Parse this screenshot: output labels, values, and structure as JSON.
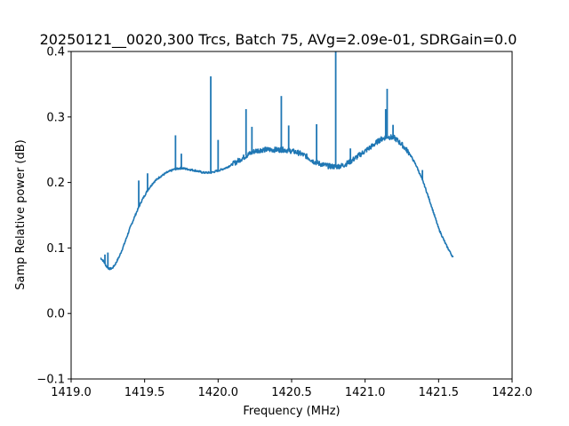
{
  "chart_data": {
    "type": "line",
    "title": "20250121__0020,300 Trcs, Batch 75, AVg=2.09e-01, SDRGain=0.0",
    "xlabel": "Frequency (MHz)",
    "ylabel": "Samp Relative power (dB)",
    "xlim": [
      1419.0,
      1422.0
    ],
    "ylim": [
      -0.1,
      0.4
    ],
    "xticks": [
      "1419.0",
      "1419.5",
      "1420.0",
      "1420.5",
      "1421.0",
      "1421.5",
      "1422.0"
    ],
    "yticks": [
      "−0.1",
      "0.0",
      "0.1",
      "0.2",
      "0.3",
      "0.4"
    ],
    "grid": false,
    "series": [
      {
        "color": "#1f77b4",
        "x": [
          1419.2,
          1419.22,
          1419.24,
          1419.26,
          1419.28,
          1419.3,
          1419.33,
          1419.36,
          1419.4,
          1419.44,
          1419.48,
          1419.52,
          1419.56,
          1419.6,
          1419.65,
          1419.7,
          1419.75,
          1419.8,
          1419.85,
          1419.9,
          1419.95,
          1420.0,
          1420.05,
          1420.1,
          1420.15,
          1420.2,
          1420.25,
          1420.3,
          1420.35,
          1420.4,
          1420.45,
          1420.5,
          1420.55,
          1420.6,
          1420.65,
          1420.7,
          1420.75,
          1420.8,
          1420.85,
          1420.9,
          1420.95,
          1421.0,
          1421.05,
          1421.1,
          1421.15,
          1421.2,
          1421.25,
          1421.3,
          1421.35,
          1421.4,
          1421.45,
          1421.5,
          1421.55,
          1421.6
        ],
        "y": [
          0.085,
          0.08,
          0.072,
          0.068,
          0.069,
          0.075,
          0.088,
          0.105,
          0.13,
          0.152,
          0.172,
          0.188,
          0.2,
          0.208,
          0.215,
          0.22,
          0.222,
          0.22,
          0.218,
          0.215,
          0.215,
          0.218,
          0.222,
          0.228,
          0.235,
          0.242,
          0.248,
          0.25,
          0.25,
          0.25,
          0.25,
          0.248,
          0.245,
          0.24,
          0.232,
          0.228,
          0.225,
          0.224,
          0.226,
          0.232,
          0.24,
          0.248,
          0.256,
          0.265,
          0.27,
          0.268,
          0.258,
          0.245,
          0.225,
          0.198,
          0.165,
          0.13,
          0.105,
          0.085
        ]
      }
    ],
    "spikes": [
      {
        "x": 1419.23,
        "y": 0.09
      },
      {
        "x": 1419.25,
        "y": 0.093
      },
      {
        "x": 1419.46,
        "y": 0.203
      },
      {
        "x": 1419.52,
        "y": 0.214
      },
      {
        "x": 1419.71,
        "y": 0.272
      },
      {
        "x": 1419.75,
        "y": 0.244
      },
      {
        "x": 1419.95,
        "y": 0.362
      },
      {
        "x": 1420.0,
        "y": 0.265
      },
      {
        "x": 1420.19,
        "y": 0.312
      },
      {
        "x": 1420.23,
        "y": 0.285
      },
      {
        "x": 1420.43,
        "y": 0.332
      },
      {
        "x": 1420.48,
        "y": 0.287
      },
      {
        "x": 1420.67,
        "y": 0.289
      },
      {
        "x": 1420.8,
        "y": 0.4
      },
      {
        "x": 1420.9,
        "y": 0.252
      },
      {
        "x": 1421.14,
        "y": 0.312
      },
      {
        "x": 1421.15,
        "y": 0.343
      },
      {
        "x": 1421.19,
        "y": 0.288
      },
      {
        "x": 1421.39,
        "y": 0.219
      }
    ]
  }
}
